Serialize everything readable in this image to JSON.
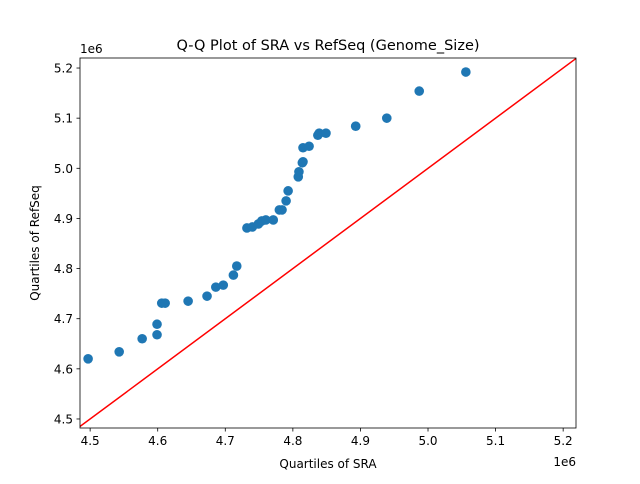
{
  "chart_data": {
    "type": "scatter",
    "title": "Q-Q Plot of SRA vs RefSeq (Genome_Size)",
    "xlabel": "Quartiles of SRA",
    "ylabel": "Quartiles of RefSeq",
    "x_offset_label": "1e6",
    "y_offset_label": "1e6",
    "xlim": [
      4.485,
      5.219
    ],
    "ylim": [
      4.482,
      5.22
    ],
    "x_ticks": [
      "4.5",
      "4.6",
      "4.7",
      "4.8",
      "4.9",
      "5.0",
      "5.1",
      "5.2"
    ],
    "y_ticks": [
      "4.5",
      "4.6",
      "4.7",
      "4.8",
      "4.9",
      "5.0",
      "5.1",
      "5.2"
    ],
    "grid": false,
    "point_color": "#1f77b4",
    "reference_line": {
      "type": "y=x",
      "color": "#ff0000"
    },
    "points": [
      [
        4.497,
        4.62
      ],
      [
        4.543,
        4.634
      ],
      [
        4.577,
        4.66
      ],
      [
        4.599,
        4.668
      ],
      [
        4.599,
        4.689
      ],
      [
        4.606,
        4.731
      ],
      [
        4.611,
        4.731
      ],
      [
        4.645,
        4.735
      ],
      [
        4.673,
        4.745
      ],
      [
        4.686,
        4.763
      ],
      [
        4.697,
        4.767
      ],
      [
        4.712,
        4.787
      ],
      [
        4.717,
        4.805
      ],
      [
        4.732,
        4.881
      ],
      [
        4.74,
        4.883
      ],
      [
        4.749,
        4.889
      ],
      [
        4.754,
        4.895
      ],
      [
        4.76,
        4.897
      ],
      [
        4.771,
        4.897
      ],
      [
        4.78,
        4.917
      ],
      [
        4.784,
        4.917
      ],
      [
        4.79,
        4.935
      ],
      [
        4.793,
        4.955
      ],
      [
        4.808,
        4.983
      ],
      [
        4.809,
        4.993
      ],
      [
        4.814,
        5.011
      ],
      [
        4.815,
        5.013
      ],
      [
        4.815,
        5.041
      ],
      [
        4.824,
        5.044
      ],
      [
        4.837,
        5.066
      ],
      [
        4.839,
        5.07
      ],
      [
        4.849,
        5.07
      ],
      [
        4.893,
        5.084
      ],
      [
        4.939,
        5.1
      ],
      [
        4.987,
        5.154
      ],
      [
        5.056,
        5.192
      ]
    ]
  }
}
